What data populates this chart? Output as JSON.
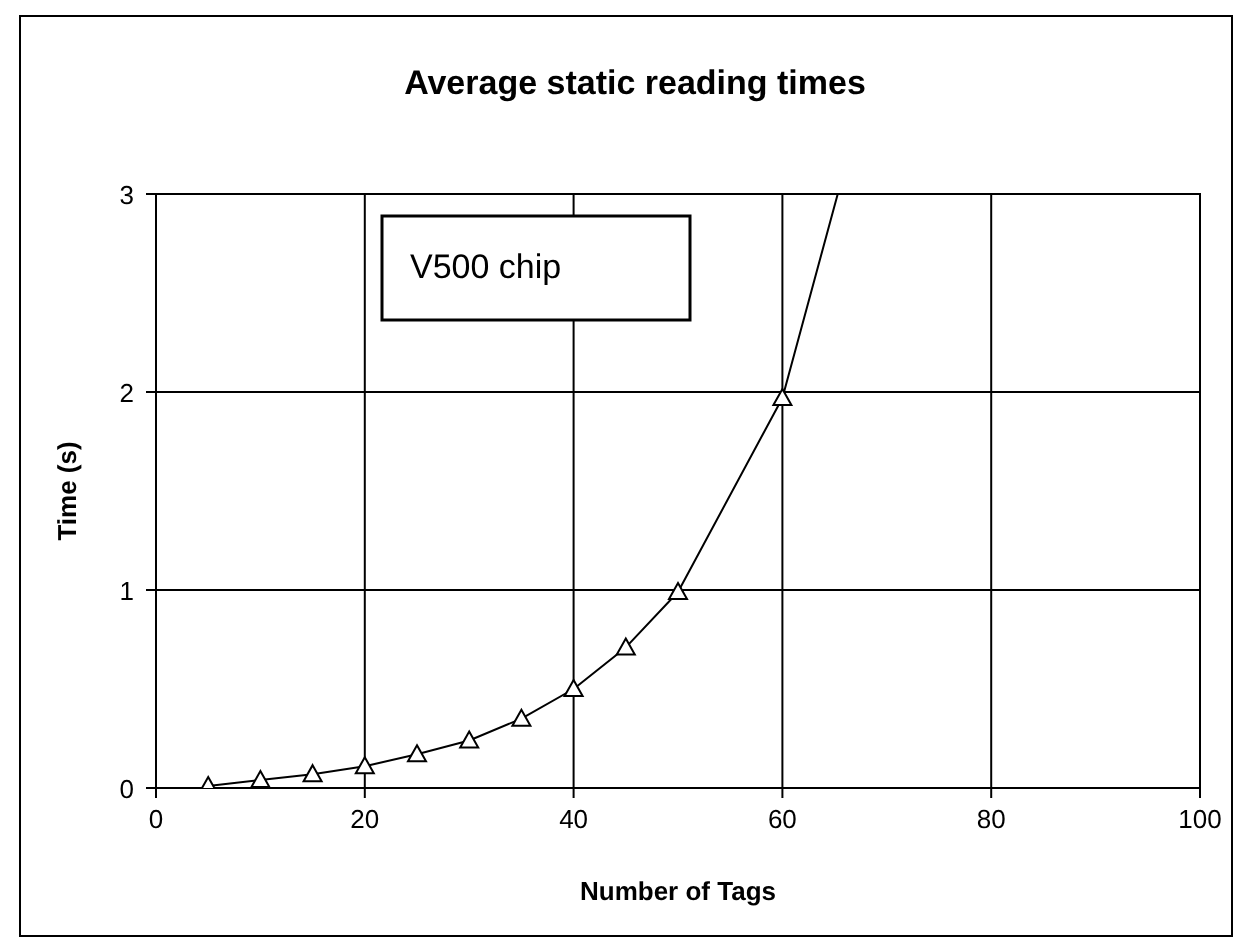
{
  "chart_data": {
    "type": "line",
    "title": "Average static reading times",
    "xlabel": "Number of Tags",
    "ylabel": "Time (s)",
    "series": [
      {
        "color": "#000000",
        "marker": "none",
        "x": [
          5,
          10,
          15,
          20,
          25,
          30,
          35,
          40,
          45,
          50,
          60,
          65.3
        ],
        "values": [
          0.01,
          0.04,
          0.07,
          0.11,
          0.17,
          0.24,
          0.35,
          0.5,
          0.71,
          0.99,
          1.97,
          3
        ]
      },
      {
        "type": "scatter",
        "color": "#000000",
        "marker": "triangle",
        "x": [
          5,
          10,
          15,
          20,
          25,
          30,
          35,
          40,
          45,
          50,
          60
        ],
        "values": [
          0.01,
          0.04,
          0.07,
          0.11,
          0.17,
          0.24,
          0.35,
          0.5,
          0.71,
          0.99,
          1.97
        ]
      }
    ],
    "annotations": [
      "V500 chip"
    ],
    "xlim": [
      0,
      100
    ],
    "xticks": [
      0,
      20,
      40,
      60,
      80,
      100
    ],
    "ylim": [
      0,
      3
    ],
    "yticks": [
      0,
      1,
      2,
      3
    ],
    "grid": true
  }
}
